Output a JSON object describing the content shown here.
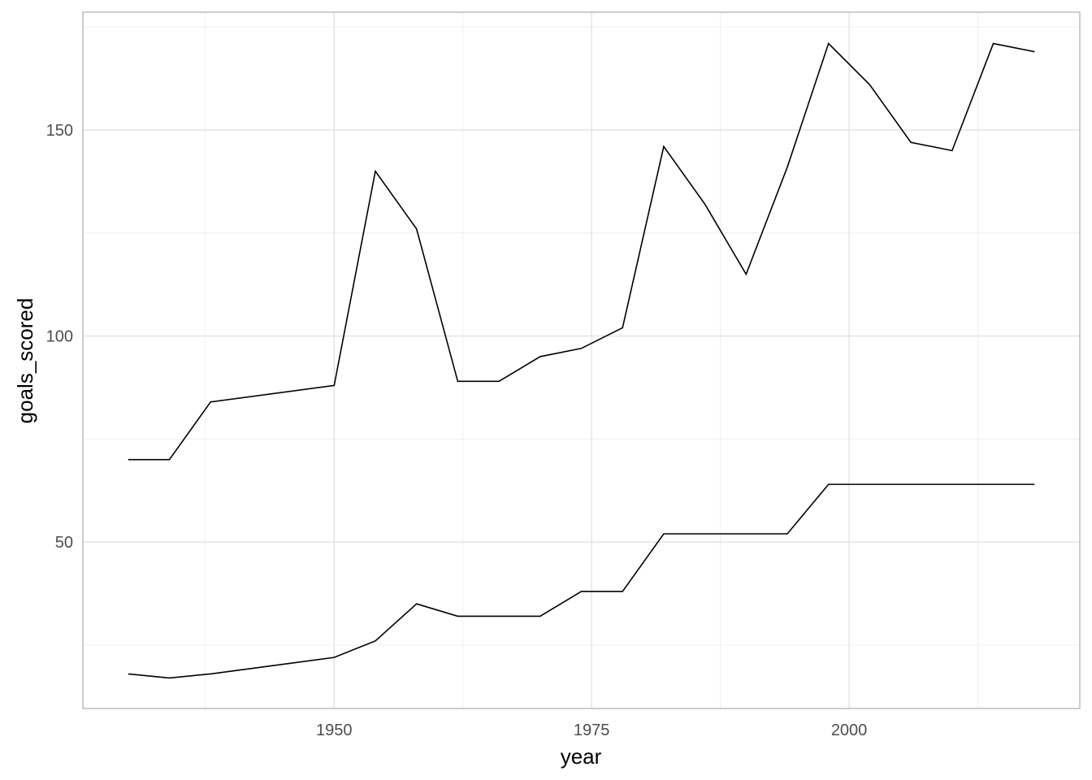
{
  "chart_data": {
    "type": "line",
    "x_label": "year",
    "y_label": "goals_scored",
    "x": [
      1930,
      1934,
      1938,
      1950,
      1954,
      1958,
      1962,
      1966,
      1970,
      1974,
      1978,
      1982,
      1986,
      1990,
      1994,
      1998,
      2002,
      2006,
      2010,
      2014,
      2018
    ],
    "series": [
      {
        "color": "#000000",
        "values": [
          70,
          70,
          84,
          88,
          140,
          126,
          89,
          89,
          95,
          97,
          102,
          146,
          132,
          115,
          141,
          171,
          161,
          147,
          145,
          171,
          169
        ]
      },
      {
        "color": "#000000",
        "values": [
          18,
          17,
          18,
          22,
          26,
          35,
          32,
          32,
          32,
          38,
          38,
          52,
          52,
          52,
          52,
          64,
          64,
          64,
          64,
          64,
          64
        ]
      }
    ],
    "xlim": [
      1925.6,
      2022.4
    ],
    "ylim": [
      9.6,
      178.6
    ],
    "xticks": [
      1950,
      1975,
      2000
    ],
    "yticks": [
      50,
      100,
      150
    ],
    "x_minor_ticks": [
      1937.5,
      1962.5,
      1987.5,
      2012.5
    ],
    "y_minor_ticks": [
      25,
      75,
      125,
      175
    ],
    "grid": true
  }
}
